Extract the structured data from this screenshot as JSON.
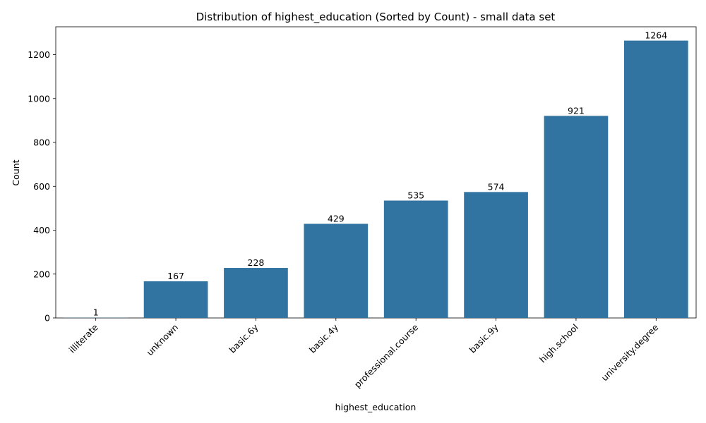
{
  "chart_data": {
    "type": "bar",
    "title": "Distribution of highest_education (Sorted by Count) - small data set",
    "xlabel": "highest_education",
    "ylabel": "Count",
    "categories": [
      "illiterate",
      "unknown",
      "basic.6y",
      "basic.4y",
      "professional.course",
      "basic.9y",
      "high.school",
      "university.degree"
    ],
    "values": [
      1,
      167,
      228,
      429,
      535,
      574,
      921,
      1264
    ],
    "ylim": [
      0,
      1327
    ],
    "yticks": [
      0,
      200,
      400,
      600,
      800,
      1000,
      1200
    ],
    "bar_color": "#3274a1",
    "grid": false,
    "legend": "none"
  }
}
